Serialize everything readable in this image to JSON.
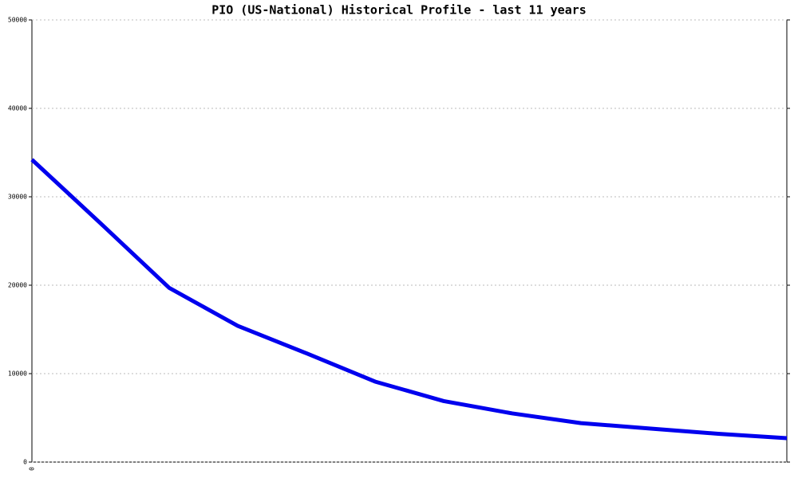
{
  "chart_data": {
    "type": "line",
    "title": "PIO (US-National) Historical Profile - last 11 years",
    "categories": [
      "0",
      null,
      null,
      null,
      null,
      null,
      null,
      null,
      null,
      null,
      null,
      null
    ],
    "series": [
      {
        "color": "#0000ee",
        "values": [
          34200,
          27000,
          19700,
          15400,
          12300,
          9100,
          6900,
          5500,
          4400,
          3800,
          3200,
          2700
        ]
      }
    ],
    "ylim": [
      0,
      50000
    ],
    "yticks": [
      0,
      10000,
      20000,
      30000,
      40000,
      50000
    ],
    "grid": true
  }
}
